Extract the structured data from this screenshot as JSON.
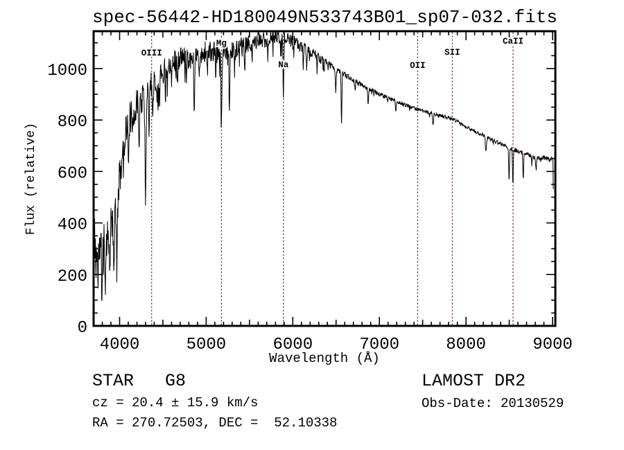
{
  "chart_data": {
    "type": "line",
    "title": "spec-56442-HD180049N533743B01_sp07-032.fits",
    "xlabel": "Wavelength (Å)",
    "ylabel": "Flux (relative)",
    "xlim": [
      3700,
      9032
    ],
    "ylim": [
      0,
      1145
    ],
    "x_major_ticks": [
      4000,
      5000,
      6000,
      7000,
      8000,
      9000
    ],
    "x_medium_tick_step": 500,
    "x_minor_tick_step": 100,
    "y_major_ticks": [
      0,
      200,
      400,
      600,
      800,
      1000
    ],
    "y_minor_tick_step": 50,
    "grid": false,
    "legend": null,
    "line_color": "#000000",
    "marker_line_color": "#7d3f3f",
    "spectral_line_markers": [
      {
        "label": "OIII",
        "wavelength": 4370,
        "label_y": 80
      },
      {
        "label": "Mg",
        "wavelength": 5176,
        "label_y": 66
      },
      {
        "label": "Na",
        "wavelength": 5892,
        "label_y": 97
      },
      {
        "label": "OII",
        "wavelength": 7442,
        "label_y": 98
      },
      {
        "label": "SII",
        "wavelength": 7842,
        "label_y": 79
      },
      {
        "label": "CaII",
        "wavelength": 8544,
        "label_y": 63
      }
    ],
    "wavelength_start": 3704,
    "wavelength_end": 9011,
    "sample_step": 4,
    "seed": 11,
    "spike_probability": 0.05,
    "spike_extra": 1.5,
    "continuum_points": [
      [
        3704,
        360
      ],
      [
        3740,
        310
      ],
      [
        3780,
        295
      ],
      [
        3820,
        310
      ],
      [
        3860,
        345
      ],
      [
        3900,
        400
      ],
      [
        3950,
        460
      ],
      [
        4000,
        570
      ],
      [
        4040,
        700
      ],
      [
        4080,
        780
      ],
      [
        4140,
        820
      ],
      [
        4200,
        855
      ],
      [
        4260,
        880
      ],
      [
        4330,
        925
      ],
      [
        4400,
        955
      ],
      [
        4500,
        985
      ],
      [
        4600,
        1025
      ],
      [
        4700,
        1040
      ],
      [
        4800,
        1040
      ],
      [
        4900,
        1050
      ],
      [
        5000,
        1068
      ],
      [
        5100,
        1062
      ],
      [
        5200,
        1062
      ],
      [
        5300,
        1072
      ],
      [
        5400,
        1085
      ],
      [
        5500,
        1095
      ],
      [
        5600,
        1105
      ],
      [
        5700,
        1115
      ],
      [
        5800,
        1123
      ],
      [
        5900,
        1117
      ],
      [
        6000,
        1103
      ],
      [
        6100,
        1086
      ],
      [
        6200,
        1066
      ],
      [
        6300,
        1046
      ],
      [
        6400,
        1021
      ],
      [
        6500,
        996
      ],
      [
        6600,
        976
      ],
      [
        6700,
        956
      ],
      [
        6800,
        936
      ],
      [
        6900,
        917
      ],
      [
        7000,
        901
      ],
      [
        7100,
        886
      ],
      [
        7200,
        872
      ],
      [
        7300,
        858
      ],
      [
        7400,
        846
      ],
      [
        7500,
        836
      ],
      [
        7600,
        826
      ],
      [
        7700,
        818
      ],
      [
        7800,
        809
      ],
      [
        7900,
        794
      ],
      [
        8000,
        774
      ],
      [
        8100,
        755
      ],
      [
        8200,
        741
      ],
      [
        8300,
        723
      ],
      [
        8400,
        706
      ],
      [
        8500,
        692
      ],
      [
        8600,
        679
      ],
      [
        8700,
        669
      ],
      [
        8800,
        652
      ],
      [
        8900,
        654
      ],
      [
        8960,
        646
      ],
      [
        9000,
        649
      ],
      [
        9006,
        640
      ],
      [
        9009,
        480
      ],
      [
        9011,
        40
      ]
    ],
    "noise_profile": [
      [
        3704,
        95
      ],
      [
        3900,
        85
      ],
      [
        4000,
        72
      ],
      [
        4300,
        60
      ],
      [
        4600,
        48
      ],
      [
        5200,
        40
      ],
      [
        5700,
        32
      ],
      [
        6000,
        26
      ],
      [
        6300,
        17
      ],
      [
        6500,
        11
      ],
      [
        7000,
        8
      ],
      [
        7600,
        7
      ],
      [
        8200,
        8
      ],
      [
        8600,
        9
      ],
      [
        8990,
        9
      ],
      [
        9011,
        4
      ]
    ],
    "absorption_lines": [
      [
        3727,
        130,
        5
      ],
      [
        3750,
        170,
        5
      ],
      [
        3798,
        150,
        5
      ],
      [
        3835,
        175,
        5
      ],
      [
        3889,
        200,
        6
      ],
      [
        3933,
        300,
        7
      ],
      [
        3968,
        255,
        7
      ],
      [
        4045,
        130,
        5
      ],
      [
        4101,
        190,
        6
      ],
      [
        4144,
        110,
        5
      ],
      [
        4226,
        140,
        5
      ],
      [
        4300,
        430,
        8
      ],
      [
        4340,
        170,
        6
      ],
      [
        4383,
        130,
        5
      ],
      [
        4455,
        95,
        5
      ],
      [
        4531,
        95,
        5
      ],
      [
        4668,
        105,
        5
      ],
      [
        4861,
        235,
        6
      ],
      [
        4920,
        95,
        5
      ],
      [
        5015,
        85,
        5
      ],
      [
        5110,
        90,
        5
      ],
      [
        5175,
        315,
        7
      ],
      [
        5269,
        225,
        6
      ],
      [
        5328,
        105,
        5
      ],
      [
        5446,
        95,
        5
      ],
      [
        5530,
        85,
        5
      ],
      [
        5710,
        75,
        5
      ],
      [
        5892,
        255,
        6
      ],
      [
        6122,
        85,
        5
      ],
      [
        6162,
        75,
        5
      ],
      [
        6280,
        60,
        5
      ],
      [
        6360,
        55,
        5
      ],
      [
        6497,
        90,
        6
      ],
      [
        6563,
        195,
        6
      ],
      [
        6720,
        45,
        5
      ],
      [
        6870,
        55,
        7
      ],
      [
        7190,
        38,
        7
      ],
      [
        7620,
        42,
        7
      ],
      [
        8230,
        55,
        9
      ],
      [
        8498,
        125,
        6
      ],
      [
        8542,
        145,
        6
      ],
      [
        8662,
        105,
        6
      ],
      [
        8760,
        38,
        5
      ],
      [
        8810,
        45,
        7
      ]
    ]
  },
  "annotations": {
    "class_line": "STAR   G8",
    "survey": "LAMOST DR2",
    "cz_line": "cz = 20.4 ± 15.9 km/s",
    "obs_date_line": "Obs-Date: 20130529",
    "radec_line": "RA = 270.72503, DEC =  52.10338"
  }
}
